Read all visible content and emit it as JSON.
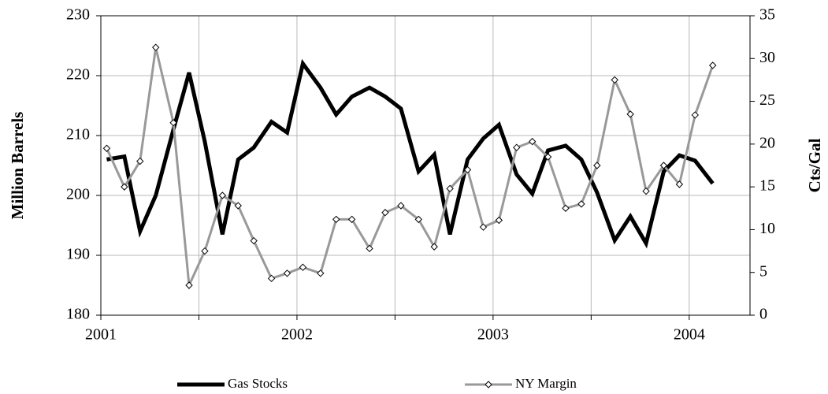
{
  "chart_data": {
    "type": "line",
    "y_label": "Million Barrels",
    "y2_label": "Cts/Gal",
    "x": [
      2001.03,
      2001.12,
      2001.2,
      2001.28,
      2001.37,
      2001.45,
      2001.53,
      2001.62,
      2001.7,
      2001.78,
      2001.87,
      2001.95,
      2002.03,
      2002.12,
      2002.2,
      2002.28,
      2002.37,
      2002.45,
      2002.53,
      2002.62,
      2002.7,
      2002.78,
      2002.87,
      2002.95,
      2003.03,
      2003.12,
      2003.2,
      2003.28,
      2003.37,
      2003.45,
      2003.53,
      2003.62,
      2003.7,
      2003.78,
      2003.87,
      2003.95,
      2004.03,
      2004.12
    ],
    "series": [
      {
        "name": "Gas Stocks",
        "color": "#000000",
        "axis": "y",
        "values": [
          206,
          206.5,
          194,
          200,
          211,
          220.5,
          209,
          193.5,
          206,
          208,
          212.3,
          210.5,
          222,
          218,
          213.5,
          216.5,
          218,
          216.5,
          214.5,
          204,
          206.8,
          193.5,
          206,
          209.5,
          211.8,
          203.5,
          200.3,
          207.5,
          208.3,
          206,
          200.5,
          192.5,
          196.5,
          192,
          204,
          206.7,
          205.8,
          202
        ]
      },
      {
        "name": "NY Margin",
        "color": "#999999",
        "axis": "y2",
        "marker": "diamond",
        "values": [
          19.5,
          15,
          18,
          31.3,
          22.5,
          3.5,
          7.5,
          14,
          12.8,
          8.7,
          4.3,
          4.9,
          5.6,
          4.9,
          11.2,
          11.2,
          7.8,
          12,
          12.8,
          11.2,
          8,
          14.8,
          17,
          10.3,
          11.1,
          19.6,
          20.3,
          18.5,
          12.5,
          13,
          17.5,
          27.5,
          23.5,
          14.5,
          17.5,
          15.3,
          23.4,
          29.2
        ]
      }
    ],
    "xlim": [
      2001,
      2004.31
    ],
    "xticks": [
      2001,
      2002,
      2003,
      2004
    ],
    "x_minor_ticks": [
      2001.5,
      2002.5,
      2003.5
    ],
    "ylim": [
      180,
      230
    ],
    "yticks": [
      180,
      190,
      200,
      210,
      220,
      230
    ],
    "y2lim": [
      0,
      35
    ],
    "y2ticks": [
      0,
      5,
      10,
      15,
      20,
      25,
      30,
      35
    ],
    "grid": true,
    "legend": "bottom"
  }
}
